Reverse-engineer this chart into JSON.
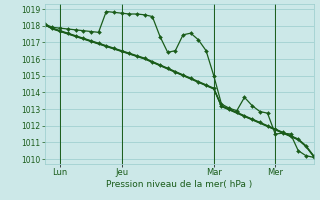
{
  "background_color": "#cce8e8",
  "grid_color": "#99cccc",
  "line_color": "#1a5c1a",
  "ylabel_min": 1010,
  "ylabel_max": 1019,
  "yticks": [
    1010,
    1011,
    1012,
    1013,
    1014,
    1015,
    1016,
    1017,
    1018,
    1019
  ],
  "xlabel": "Pression niveau de la mer( hPa )",
  "xtick_labels": [
    "Lun",
    "Jeu",
    "Mar",
    "Mer"
  ],
  "xtick_positions": [
    2,
    10,
    22,
    30
  ],
  "vline_positions": [
    2,
    10,
    22,
    30
  ],
  "total_points": 36,
  "series1": [
    1018.1,
    1017.9,
    1017.85,
    1017.8,
    1017.75,
    1017.7,
    1017.65,
    1017.6,
    1018.85,
    1018.8,
    1018.75,
    1018.7,
    1018.7,
    1018.65,
    1018.55,
    1017.35,
    1016.4,
    1016.5,
    1017.45,
    1017.55,
    1017.15,
    1016.5,
    1015.0,
    1013.3,
    1013.05,
    1012.9,
    1013.7,
    1013.2,
    1012.85,
    1012.75,
    1011.5,
    1011.55,
    1011.5,
    1010.5,
    1010.2,
    1010.1
  ],
  "series2": [
    1018.05,
    1017.85,
    1017.7,
    1017.55,
    1017.4,
    1017.25,
    1017.1,
    1016.95,
    1016.8,
    1016.65,
    1016.5,
    1016.35,
    1016.2,
    1016.05,
    1015.85,
    1015.65,
    1015.45,
    1015.25,
    1015.05,
    1014.85,
    1014.65,
    1014.45,
    1014.25,
    1013.2,
    1013.0,
    1012.8,
    1012.6,
    1012.4,
    1012.2,
    1012.0,
    1011.8,
    1011.6,
    1011.4,
    1011.2,
    1010.8,
    1010.2
  ],
  "series3": [
    1018.05,
    1017.82,
    1017.67,
    1017.52,
    1017.37,
    1017.22,
    1017.07,
    1016.92,
    1016.77,
    1016.62,
    1016.47,
    1016.32,
    1016.17,
    1016.02,
    1015.82,
    1015.62,
    1015.42,
    1015.22,
    1015.02,
    1014.82,
    1014.62,
    1014.42,
    1014.22,
    1013.17,
    1012.97,
    1012.77,
    1012.57,
    1012.37,
    1012.17,
    1011.97,
    1011.77,
    1011.57,
    1011.37,
    1011.17,
    1010.77,
    1010.17
  ],
  "series4": [
    1018.05,
    1017.8,
    1017.65,
    1017.5,
    1017.35,
    1017.2,
    1017.05,
    1016.9,
    1016.75,
    1016.6,
    1016.45,
    1016.3,
    1016.15,
    1016.0,
    1015.8,
    1015.6,
    1015.4,
    1015.2,
    1015.0,
    1014.8,
    1014.6,
    1014.4,
    1014.2,
    1013.15,
    1012.95,
    1012.75,
    1012.55,
    1012.35,
    1012.15,
    1011.95,
    1011.75,
    1011.55,
    1011.35,
    1011.15,
    1010.75,
    1010.15
  ]
}
